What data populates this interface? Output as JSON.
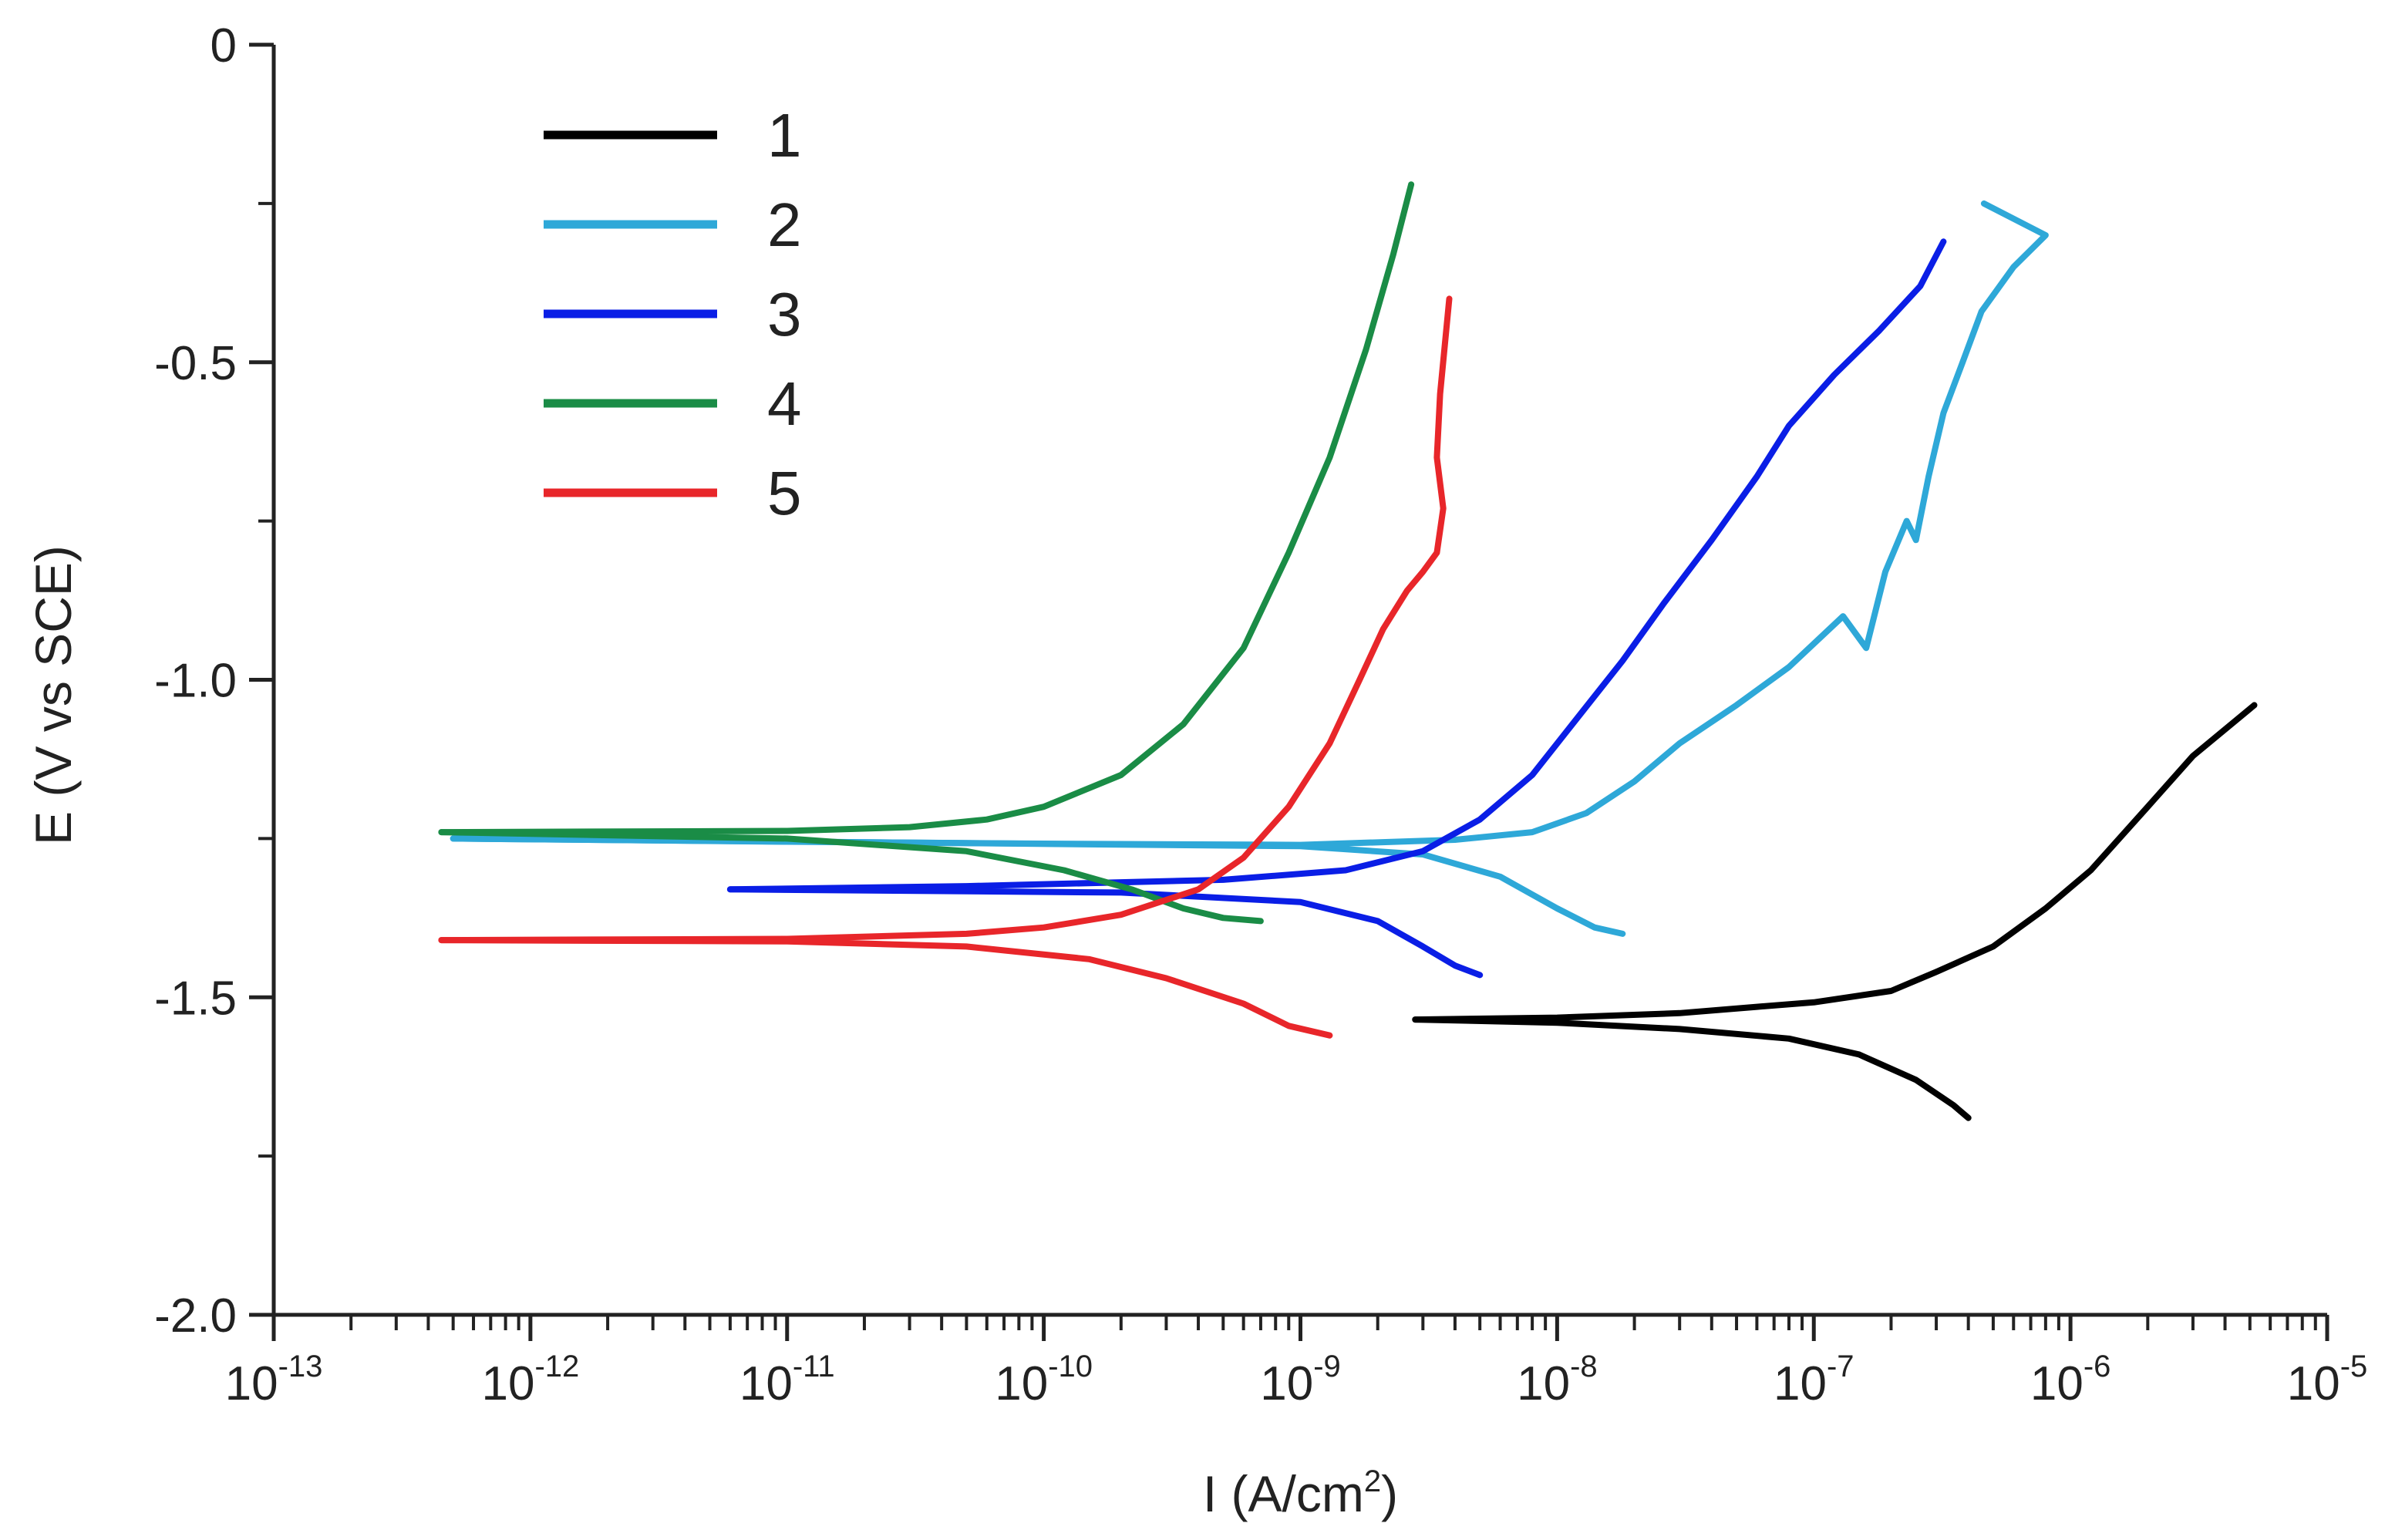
{
  "chart_data": {
    "type": "line",
    "title": "",
    "xlabel": "I (A/cm",
    "xlabel_sup": "2",
    "xlabel_suffix": ")",
    "ylabel": "E (V vs SCE)",
    "xscale": "log",
    "xlim": [
      1e-13,
      1e-05
    ],
    "ylim": [
      -2.0,
      0
    ],
    "x_ticks": [
      {
        "base": "10",
        "exp": "-13",
        "value": 1e-13
      },
      {
        "base": "10",
        "exp": "-12",
        "value": 1e-12
      },
      {
        "base": "10",
        "exp": "-11",
        "value": 1e-11
      },
      {
        "base": "10",
        "exp": "-10",
        "value": 1e-10
      },
      {
        "base": "10",
        "exp": "-9",
        "value": 1e-09
      },
      {
        "base": "10",
        "exp": "-8",
        "value": 1e-08
      },
      {
        "base": "10",
        "exp": "-7",
        "value": 1e-07
      },
      {
        "base": "10",
        "exp": "-6",
        "value": 1e-06
      },
      {
        "base": "10",
        "exp": "-5",
        "value": 1e-05
      }
    ],
    "y_ticks": [
      {
        "label": "0",
        "value": 0
      },
      {
        "label": "-0.5",
        "value": -0.5
      },
      {
        "label": "-1.0",
        "value": -1.0
      },
      {
        "label": "-1.5",
        "value": -1.5
      },
      {
        "label": "-2.0",
        "value": -2.0
      }
    ],
    "grid": false,
    "legend_position": "top-left",
    "series": [
      {
        "name": "1",
        "color": "#000000",
        "anodic": [
          [
            2.8e-09,
            -1.535
          ],
          [
            1e-08,
            -1.532
          ],
          [
            3e-08,
            -1.525
          ],
          [
            6e-08,
            -1.515
          ],
          [
            1e-07,
            -1.508
          ],
          [
            2e-07,
            -1.49
          ],
          [
            3e-07,
            -1.46
          ],
          [
            5e-07,
            -1.42
          ],
          [
            8e-07,
            -1.36
          ],
          [
            1.2e-06,
            -1.3
          ],
          [
            2e-06,
            -1.2
          ],
          [
            3e-06,
            -1.12
          ],
          [
            5.2e-06,
            -1.04
          ]
        ],
        "cathodic": [
          [
            2.8e-09,
            -1.535
          ],
          [
            1e-08,
            -1.54
          ],
          [
            3e-08,
            -1.55
          ],
          [
            8e-08,
            -1.565
          ],
          [
            1.5e-07,
            -1.59
          ],
          [
            2.5e-07,
            -1.63
          ],
          [
            3.5e-07,
            -1.67
          ],
          [
            4e-07,
            -1.69
          ]
        ]
      },
      {
        "name": "2",
        "color": "#2ea8d8",
        "anodic": [
          [
            5e-13,
            -1.25
          ],
          [
            1e-11,
            -1.255
          ],
          [
            1e-10,
            -1.258
          ],
          [
            1e-09,
            -1.26
          ],
          [
            4e-09,
            -1.252
          ],
          [
            8e-09,
            -1.24
          ],
          [
            1.3e-08,
            -1.21
          ],
          [
            2e-08,
            -1.16
          ],
          [
            3e-08,
            -1.1
          ],
          [
            5e-08,
            -1.04
          ],
          [
            8e-08,
            -0.98
          ],
          [
            1.3e-07,
            -0.9
          ],
          [
            1.6e-07,
            -0.95
          ],
          [
            1.9e-07,
            -0.83
          ],
          [
            2.3e-07,
            -0.75
          ],
          [
            2.5e-07,
            -0.78
          ],
          [
            2.8e-07,
            -0.68
          ],
          [
            3.2e-07,
            -0.58
          ],
          [
            3.8e-07,
            -0.5
          ],
          [
            4.5e-07,
            -0.42
          ],
          [
            6e-07,
            -0.35
          ],
          [
            8e-07,
            -0.3
          ],
          [
            4.6e-07,
            -0.25
          ]
        ],
        "cathodic": [
          [
            5e-13,
            -1.25
          ],
          [
            1e-09,
            -1.262
          ],
          [
            3e-09,
            -1.275
          ],
          [
            6e-09,
            -1.31
          ],
          [
            1e-08,
            -1.36
          ],
          [
            1.4e-08,
            -1.39
          ],
          [
            1.8e-08,
            -1.4
          ]
        ]
      },
      {
        "name": "3",
        "color": "#0a1ee6",
        "anodic": [
          [
            6e-12,
            -1.33
          ],
          [
            5e-11,
            -1.325
          ],
          [
            5e-10,
            -1.315
          ],
          [
            1.5e-09,
            -1.3
          ],
          [
            3e-09,
            -1.27
          ],
          [
            5e-09,
            -1.22
          ],
          [
            8e-09,
            -1.15
          ],
          [
            1.2e-08,
            -1.06
          ],
          [
            1.8e-08,
            -0.97
          ],
          [
            2.6e-08,
            -0.88
          ],
          [
            4e-08,
            -0.78
          ],
          [
            6e-08,
            -0.68
          ],
          [
            8e-08,
            -0.6
          ],
          [
            1.2e-07,
            -0.52
          ],
          [
            1.8e-07,
            -0.45
          ],
          [
            2.6e-07,
            -0.38
          ],
          [
            3.2e-07,
            -0.31
          ]
        ],
        "cathodic": [
          [
            6e-12,
            -1.33
          ],
          [
            2e-10,
            -1.335
          ],
          [
            1e-09,
            -1.35
          ],
          [
            2e-09,
            -1.38
          ],
          [
            3e-09,
            -1.42
          ],
          [
            4e-09,
            -1.45
          ],
          [
            5e-09,
            -1.465
          ]
        ]
      },
      {
        "name": "4",
        "color": "#1a8c46",
        "anodic": [
          [
            4.5e-13,
            -1.24
          ],
          [
            1e-11,
            -1.238
          ],
          [
            3e-11,
            -1.232
          ],
          [
            6e-11,
            -1.22
          ],
          [
            1e-10,
            -1.2
          ],
          [
            2e-10,
            -1.15
          ],
          [
            3.5e-10,
            -1.07
          ],
          [
            6e-10,
            -0.95
          ],
          [
            9e-10,
            -0.8
          ],
          [
            1.3e-09,
            -0.65
          ],
          [
            1.8e-09,
            -0.48
          ],
          [
            2.3e-09,
            -0.33
          ],
          [
            2.7e-09,
            -0.22
          ]
        ],
        "cathodic": [
          [
            4.5e-13,
            -1.24
          ],
          [
            1e-11,
            -1.25
          ],
          [
            5e-11,
            -1.27
          ],
          [
            1.2e-10,
            -1.3
          ],
          [
            2.2e-10,
            -1.33
          ],
          [
            3.5e-10,
            -1.36
          ],
          [
            5e-10,
            -1.375
          ],
          [
            7e-10,
            -1.38
          ]
        ]
      },
      {
        "name": "5",
        "color": "#e8262a",
        "anodic": [
          [
            4.5e-13,
            -1.41
          ],
          [
            1e-11,
            -1.408
          ],
          [
            5e-11,
            -1.4
          ],
          [
            1e-10,
            -1.39
          ],
          [
            2e-10,
            -1.37
          ],
          [
            4e-10,
            -1.33
          ],
          [
            6e-10,
            -1.28
          ],
          [
            9e-10,
            -1.2
          ],
          [
            1.3e-09,
            -1.1
          ],
          [
            1.7e-09,
            -1.0
          ],
          [
            2.1e-09,
            -0.92
          ],
          [
            2.6e-09,
            -0.86
          ],
          [
            3e-09,
            -0.83
          ],
          [
            3.4e-09,
            -0.8
          ],
          [
            3.6e-09,
            -0.73
          ],
          [
            3.4e-09,
            -0.65
          ],
          [
            3.5e-09,
            -0.55
          ],
          [
            3.8e-09,
            -0.4
          ]
        ],
        "cathodic": [
          [
            4.5e-13,
            -1.41
          ],
          [
            1e-11,
            -1.412
          ],
          [
            5e-11,
            -1.42
          ],
          [
            1.5e-10,
            -1.44
          ],
          [
            3e-10,
            -1.47
          ],
          [
            6e-10,
            -1.51
          ],
          [
            9e-10,
            -1.545
          ],
          [
            1.3e-09,
            -1.56
          ]
        ]
      }
    ]
  }
}
